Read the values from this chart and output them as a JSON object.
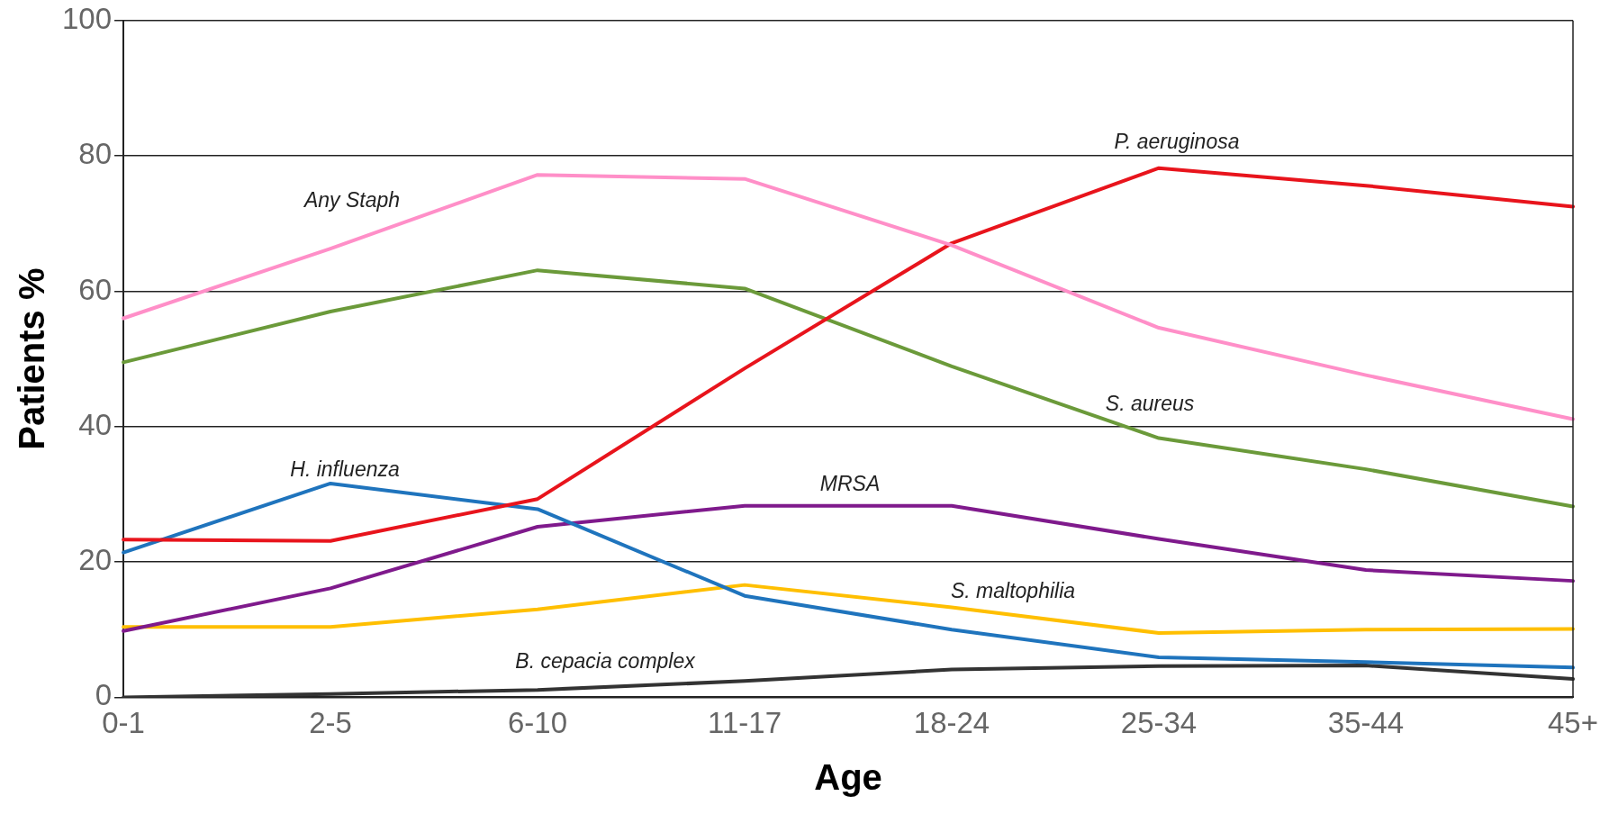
{
  "chart_data": {
    "type": "line",
    "xlabel": "Age",
    "ylabel": "Patients %",
    "categories": [
      "0-1",
      "2-5",
      "6-10",
      "11-17",
      "18-24",
      "25-34",
      "35-44",
      "45+"
    ],
    "ylim": [
      0,
      100
    ],
    "yticks": [
      0,
      20,
      40,
      60,
      80,
      100
    ],
    "grid": "y",
    "legend": false,
    "marker": "none",
    "series": [
      {
        "name": "Any Staph",
        "color": "#ff8fc8",
        "values": [
          56,
          66.3,
          77.2,
          76.6,
          66.8,
          54.6,
          47.6,
          41.1
        ]
      },
      {
        "name": "P. aeruginosa",
        "color": "#e8141c",
        "values": [
          23.3,
          23.1,
          29.3,
          48.6,
          67.1,
          78.2,
          75.6,
          72.5
        ]
      },
      {
        "name": "S. aureus",
        "color": "#6b9a3a",
        "values": [
          49.5,
          57,
          63.1,
          60.4,
          48.9,
          38.3,
          33.7,
          28.2
        ]
      },
      {
        "name": "H. influenza",
        "color": "#1f74bd",
        "values": [
          21.4,
          31.6,
          27.8,
          15,
          10,
          5.9,
          5.2,
          4.4
        ]
      },
      {
        "name": "MRSA",
        "color": "#7f1a8c",
        "values": [
          9.8,
          16.1,
          25.2,
          28.3,
          28.3,
          23.4,
          18.8,
          17.2
        ]
      },
      {
        "name": "S. maltophilia",
        "color": "#ffbf00",
        "values": [
          10.4,
          10.4,
          13,
          16.6,
          13.3,
          9.5,
          10,
          10.1
        ]
      },
      {
        "name": "B. cepacia complex",
        "color": "#333333",
        "values": [
          0,
          0.5,
          1.1,
          2.4,
          4.1,
          4.6,
          4.7,
          2.7
        ]
      }
    ]
  }
}
